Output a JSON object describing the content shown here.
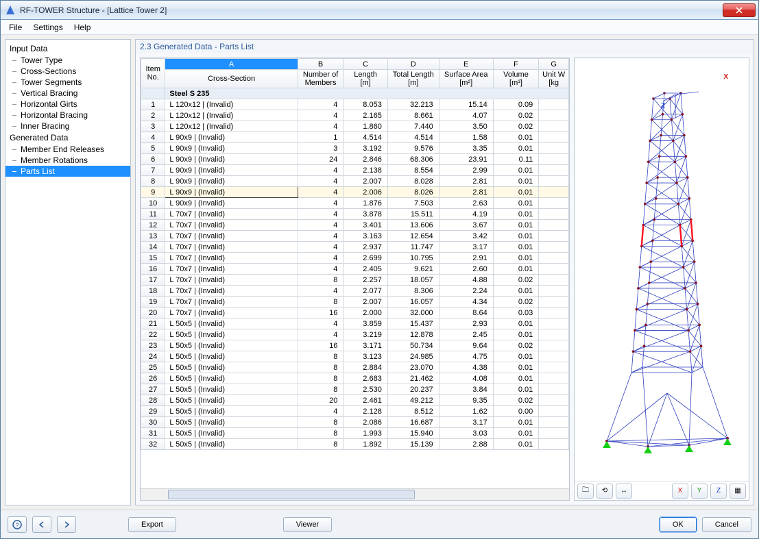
{
  "window": {
    "title": "RF-TOWER Structure - [Lattice Tower 2]"
  },
  "menu": {
    "file": "File",
    "settings": "Settings",
    "help": "Help"
  },
  "nav": {
    "input_header": "Input Data",
    "input": [
      "Tower Type",
      "Cross-Sections",
      "Tower Segments",
      "Vertical Bracing",
      "Horizontal Girts",
      "Horizontal Bracing",
      "Inner Bracing"
    ],
    "gen_header": "Generated Data",
    "gen": [
      "Member End Releases",
      "Member Rotations",
      "Parts List"
    ],
    "selected": "Parts List"
  },
  "section": {
    "title": "2.3 Generated Data - Parts List"
  },
  "table": {
    "letters": [
      "A",
      "B",
      "C",
      "D",
      "E",
      "F",
      "G"
    ],
    "headers": {
      "item": "Item\nNo.",
      "cross_section": "Cross-Section",
      "members": "Number of\nMembers",
      "length": "Length\n[m]",
      "total": "Total Length\n[m]",
      "surface": "Surface Area\n[m²]",
      "volume": "Volume\n[m³]",
      "unitw": "Unit W\n[kg"
    },
    "group": "Steel S 235",
    "selected_row": 9,
    "rows": [
      {
        "n": 1,
        "cs": "L 120x12 | (Invalid)",
        "m": 4,
        "len": "8.053",
        "tot": "32.213",
        "sa": "15.14",
        "vol": "0.09"
      },
      {
        "n": 2,
        "cs": "L 120x12 | (Invalid)",
        "m": 4,
        "len": "2.165",
        "tot": "8.661",
        "sa": "4.07",
        "vol": "0.02"
      },
      {
        "n": 3,
        "cs": "L 120x12 | (Invalid)",
        "m": 4,
        "len": "1.860",
        "tot": "7.440",
        "sa": "3.50",
        "vol": "0.02"
      },
      {
        "n": 4,
        "cs": "L 90x9 | (Invalid)",
        "m": 1,
        "len": "4.514",
        "tot": "4.514",
        "sa": "1.58",
        "vol": "0.01"
      },
      {
        "n": 5,
        "cs": "L 90x9 | (Invalid)",
        "m": 3,
        "len": "3.192",
        "tot": "9.576",
        "sa": "3.35",
        "vol": "0.01"
      },
      {
        "n": 6,
        "cs": "L 90x9 | (Invalid)",
        "m": 24,
        "len": "2.846",
        "tot": "68.306",
        "sa": "23.91",
        "vol": "0.11"
      },
      {
        "n": 7,
        "cs": "L 90x9 | (Invalid)",
        "m": 4,
        "len": "2.138",
        "tot": "8.554",
        "sa": "2.99",
        "vol": "0.01"
      },
      {
        "n": 8,
        "cs": "L 90x9 | (Invalid)",
        "m": 4,
        "len": "2.007",
        "tot": "8.028",
        "sa": "2.81",
        "vol": "0.01"
      },
      {
        "n": 9,
        "cs": "L 90x9 | (Invalid)",
        "m": 4,
        "len": "2.006",
        "tot": "8.026",
        "sa": "2.81",
        "vol": "0.01"
      },
      {
        "n": 10,
        "cs": "L 90x9 | (Invalid)",
        "m": 4,
        "len": "1.876",
        "tot": "7.503",
        "sa": "2.63",
        "vol": "0.01"
      },
      {
        "n": 11,
        "cs": "L 70x7 | (Invalid)",
        "m": 4,
        "len": "3.878",
        "tot": "15.511",
        "sa": "4.19",
        "vol": "0.01"
      },
      {
        "n": 12,
        "cs": "L 70x7 | (Invalid)",
        "m": 4,
        "len": "3.401",
        "tot": "13.606",
        "sa": "3.67",
        "vol": "0.01"
      },
      {
        "n": 13,
        "cs": "L 70x7 | (Invalid)",
        "m": 4,
        "len": "3.163",
        "tot": "12.654",
        "sa": "3.42",
        "vol": "0.01"
      },
      {
        "n": 14,
        "cs": "L 70x7 | (Invalid)",
        "m": 4,
        "len": "2.937",
        "tot": "11.747",
        "sa": "3.17",
        "vol": "0.01"
      },
      {
        "n": 15,
        "cs": "L 70x7 | (Invalid)",
        "m": 4,
        "len": "2.699",
        "tot": "10.795",
        "sa": "2.91",
        "vol": "0.01"
      },
      {
        "n": 16,
        "cs": "L 70x7 | (Invalid)",
        "m": 4,
        "len": "2.405",
        "tot": "9.621",
        "sa": "2.60",
        "vol": "0.01"
      },
      {
        "n": 17,
        "cs": "L 70x7 | (Invalid)",
        "m": 8,
        "len": "2.257",
        "tot": "18.057",
        "sa": "4.88",
        "vol": "0.02"
      },
      {
        "n": 18,
        "cs": "L 70x7 | (Invalid)",
        "m": 4,
        "len": "2.077",
        "tot": "8.306",
        "sa": "2.24",
        "vol": "0.01"
      },
      {
        "n": 19,
        "cs": "L 70x7 | (Invalid)",
        "m": 8,
        "len": "2.007",
        "tot": "16.057",
        "sa": "4.34",
        "vol": "0.02"
      },
      {
        "n": 20,
        "cs": "L 70x7 | (Invalid)",
        "m": 16,
        "len": "2.000",
        "tot": "32.000",
        "sa": "8.64",
        "vol": "0.03"
      },
      {
        "n": 21,
        "cs": "L 50x5 | (Invalid)",
        "m": 4,
        "len": "3.859",
        "tot": "15.437",
        "sa": "2.93",
        "vol": "0.01"
      },
      {
        "n": 22,
        "cs": "L 50x5 | (Invalid)",
        "m": 4,
        "len": "3.219",
        "tot": "12.878",
        "sa": "2.45",
        "vol": "0.01"
      },
      {
        "n": 23,
        "cs": "L 50x5 | (Invalid)",
        "m": 16,
        "len": "3.171",
        "tot": "50.734",
        "sa": "9.64",
        "vol": "0.02"
      },
      {
        "n": 24,
        "cs": "L 50x5 | (Invalid)",
        "m": 8,
        "len": "3.123",
        "tot": "24.985",
        "sa": "4.75",
        "vol": "0.01"
      },
      {
        "n": 25,
        "cs": "L 50x5 | (Invalid)",
        "m": 8,
        "len": "2.884",
        "tot": "23.070",
        "sa": "4.38",
        "vol": "0.01"
      },
      {
        "n": 26,
        "cs": "L 50x5 | (Invalid)",
        "m": 8,
        "len": "2.683",
        "tot": "21.462",
        "sa": "4.08",
        "vol": "0.01"
      },
      {
        "n": 27,
        "cs": "L 50x5 | (Invalid)",
        "m": 8,
        "len": "2.530",
        "tot": "20.237",
        "sa": "3.84",
        "vol": "0.01"
      },
      {
        "n": 28,
        "cs": "L 50x5 | (Invalid)",
        "m": 20,
        "len": "2.461",
        "tot": "49.212",
        "sa": "9.35",
        "vol": "0.02"
      },
      {
        "n": 29,
        "cs": "L 50x5 | (Invalid)",
        "m": 4,
        "len": "2.128",
        "tot": "8.512",
        "sa": "1.62",
        "vol": "0.00"
      },
      {
        "n": 30,
        "cs": "L 50x5 | (Invalid)",
        "m": 8,
        "len": "2.086",
        "tot": "16.687",
        "sa": "3.17",
        "vol": "0.01"
      },
      {
        "n": 31,
        "cs": "L 50x5 | (Invalid)",
        "m": 8,
        "len": "1.993",
        "tot": "15.940",
        "sa": "3.03",
        "vol": "0.01"
      },
      {
        "n": 32,
        "cs": "L 50x5 | (Invalid)",
        "m": 8,
        "len": "1.892",
        "tot": "15.139",
        "sa": "2.88",
        "vol": "0.01"
      }
    ]
  },
  "viewer": {
    "axis": {
      "x": "X",
      "y": "Y",
      "z": "Z"
    },
    "colors": {
      "member": "#3040c0",
      "node": "#8a1020",
      "highlight": "#ff1020",
      "support": "#14d014"
    },
    "toolbar_labels": [
      "v1",
      "v2",
      "v3",
      "vx",
      "vy",
      "vz",
      "iso"
    ]
  },
  "footer": {
    "export": "Export",
    "viewer": "Viewer",
    "ok": "OK",
    "cancel": "Cancel"
  }
}
